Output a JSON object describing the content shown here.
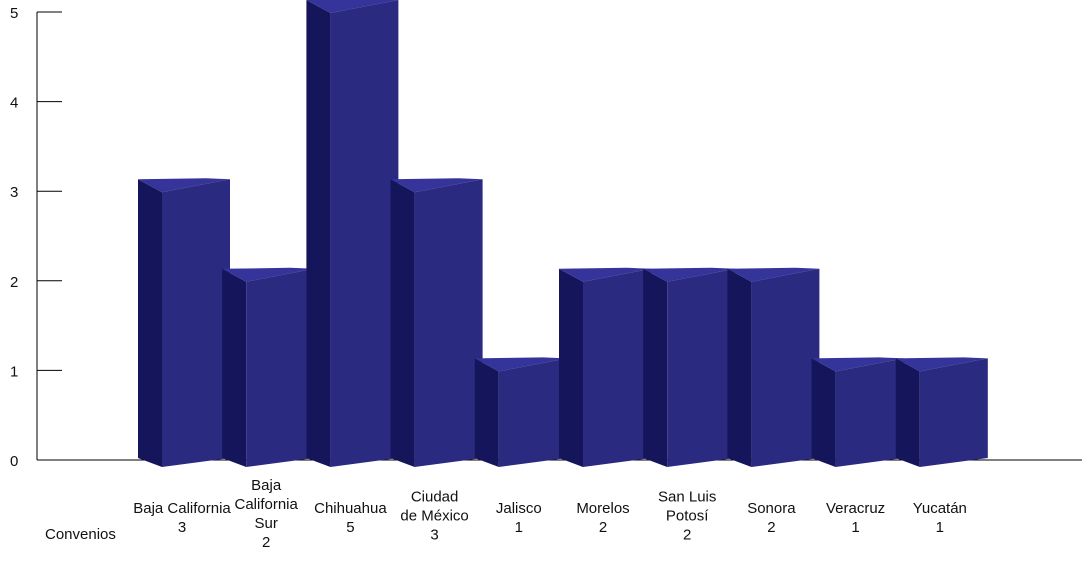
{
  "chart_data": {
    "type": "bar",
    "style": "3d",
    "categories": [
      "Baja California",
      "Baja California Sur",
      "Chihuahua",
      "Ciudad de México",
      "Jalisco",
      "Morelos",
      "San Luis Potosí",
      "Sonora",
      "Veracruz",
      "Yucatán"
    ],
    "series": [
      {
        "name": "Convenios",
        "values": [
          3,
          2,
          5,
          3,
          1,
          2,
          2,
          2,
          1,
          1
        ]
      }
    ],
    "yticks": [
      "0",
      "1",
      "2",
      "3",
      "4",
      "5"
    ],
    "ylim": [
      0,
      5
    ],
    "grid": false,
    "legend": "none",
    "data_table": true,
    "colors": {
      "front": "#2a2a80",
      "side": "#15155c",
      "top": "#34349a",
      "axis": "#000000"
    }
  }
}
